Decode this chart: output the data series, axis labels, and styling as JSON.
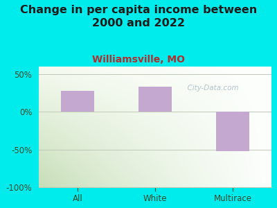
{
  "title": "Change in per capita income between\n2000 and 2022",
  "subtitle": "Williamsville, MO",
  "categories": [
    "All",
    "White",
    "Multirace"
  ],
  "values": [
    28,
    33,
    -52
  ],
  "bar_color": "#c4a8d0",
  "bar_width": 0.42,
  "ylim": [
    -100,
    60
  ],
  "yticks": [
    -100,
    -50,
    0,
    50
  ],
  "ytick_labels": [
    "-100%",
    "-50%",
    "0%",
    "50%"
  ],
  "background_color": "#00ecec",
  "plot_bg_topleft": "#e8f0e0",
  "plot_bg_topright": "#f8fbf8",
  "plot_bg_bottom": "#c8ddb8",
  "title_fontsize": 11.5,
  "subtitle_fontsize": 10,
  "subtitle_color": "#b03030",
  "title_color": "#1a1a1a",
  "tick_color": "#2d4a2d",
  "grid_color": "#c0c8b8",
  "watermark": "  City-Data.com",
  "watermark_color": "#a8bcc4",
  "tick_label_fontsize": 8.5
}
